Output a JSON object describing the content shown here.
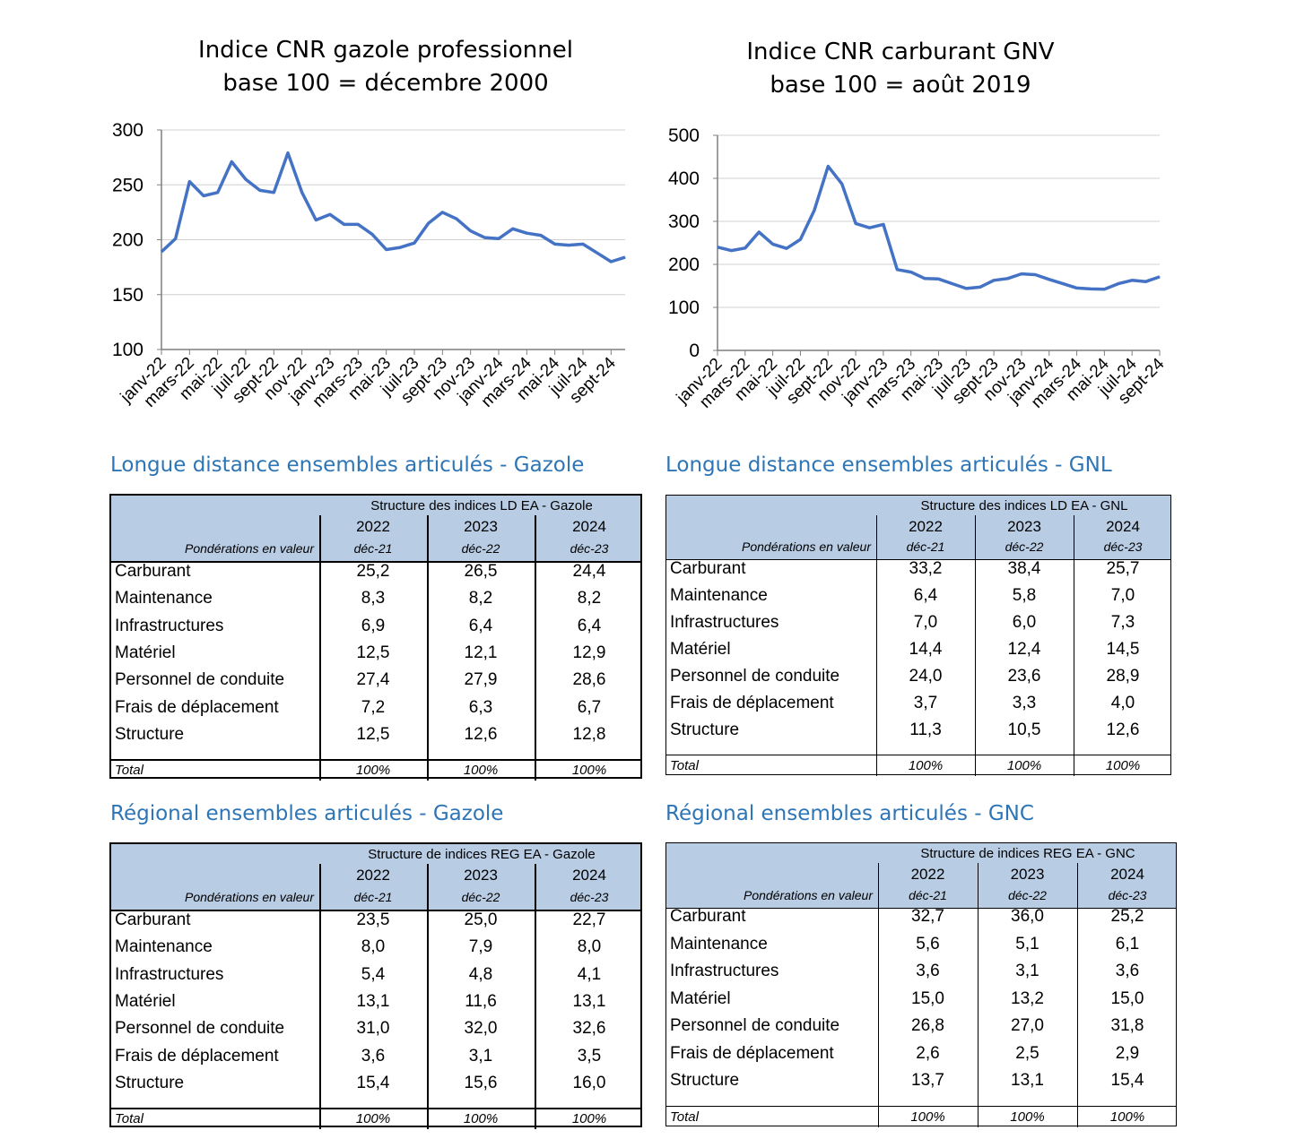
{
  "chart_data": [
    {
      "type": "line",
      "title": "Indice CNR gazole professionnel",
      "subtitle": "base 100 = décembre 2000",
      "ylim": [
        100,
        300
      ],
      "yticks": [
        100,
        150,
        200,
        250,
        300
      ],
      "grid": true,
      "color": "#4472c4",
      "tick_labels": [
        "janv-22",
        "mars-22",
        "mai-22",
        "juil-22",
        "sept-22",
        "nov-22",
        "janv-23",
        "mars-23",
        "mai-23",
        "juil-23",
        "sept-23",
        "nov-23",
        "janv-24",
        "mars-24",
        "mai-24",
        "juil-24",
        "sept-24"
      ],
      "x": [
        "janv-22",
        "févr-22",
        "mars-22",
        "avr-22",
        "mai-22",
        "juin-22",
        "juil-22",
        "août-22",
        "sept-22",
        "oct-22",
        "nov-22",
        "déc-22",
        "janv-23",
        "févr-23",
        "mars-23",
        "avr-23",
        "mai-23",
        "juin-23",
        "juil-23",
        "août-23",
        "sept-23",
        "oct-23",
        "nov-23",
        "déc-23",
        "janv-24",
        "févr-24",
        "mars-24",
        "avr-24",
        "mai-24",
        "juin-24",
        "juil-24",
        "août-24",
        "sept-24",
        "oct-24"
      ],
      "values": [
        189,
        201,
        253,
        240,
        243,
        271,
        255,
        245,
        243,
        279,
        243,
        218,
        223,
        214,
        214,
        205,
        191,
        193,
        197,
        215,
        225,
        219,
        208,
        202,
        201,
        210,
        206,
        204,
        196,
        195,
        196,
        188,
        180,
        184
      ]
    },
    {
      "type": "line",
      "title": "Indice CNR carburant GNV",
      "subtitle": "base 100 = août 2019",
      "ylim": [
        0,
        500
      ],
      "yticks": [
        0,
        100,
        200,
        300,
        400,
        500
      ],
      "grid": true,
      "color": "#4472c4",
      "tick_labels": [
        "janv-22",
        "mars-22",
        "mai-22",
        "juil-22",
        "sept-22",
        "nov-22",
        "janv-23",
        "mars-23",
        "mai-23",
        "juil-23",
        "sept-23",
        "nov-23",
        "janv-24",
        "mars-24",
        "mai-24",
        "juil-24",
        "sept-24"
      ],
      "x": [
        "janv-22",
        "févr-22",
        "mars-22",
        "avr-22",
        "mai-22",
        "juin-22",
        "juil-22",
        "août-22",
        "sept-22",
        "oct-22",
        "nov-22",
        "déc-22",
        "janv-23",
        "févr-23",
        "mars-23",
        "avr-23",
        "mai-23",
        "juin-23",
        "juil-23",
        "août-23",
        "sept-23",
        "oct-23",
        "nov-23",
        "déc-23",
        "janv-24",
        "févr-24",
        "mars-24",
        "avr-24",
        "mai-24",
        "juin-24",
        "juil-24",
        "août-24",
        "sept-24"
      ],
      "values": [
        240,
        232,
        238,
        275,
        247,
        237,
        258,
        325,
        428,
        387,
        295,
        285,
        293,
        188,
        182,
        167,
        166,
        155,
        144,
        147,
        163,
        167,
        178,
        176,
        165,
        155,
        145,
        143,
        142,
        155,
        163,
        160,
        171
      ]
    }
  ],
  "tables": [
    {
      "section_title": "Longue distance ensembles articulés - Gazole",
      "header": "Structure des indices LD EA - Gazole",
      "pond_label": "Pondérations en valeur",
      "years": [
        "2022",
        "2023",
        "2024"
      ],
      "subs": [
        "déc-21",
        "déc-22",
        "déc-23"
      ],
      "rows": [
        {
          "label": "Carburant",
          "values": [
            "25,2",
            "26,5",
            "24,4"
          ]
        },
        {
          "label": "Maintenance",
          "values": [
            "8,3",
            "8,2",
            "8,2"
          ]
        },
        {
          "label": "Infrastructures",
          "values": [
            "6,9",
            "6,4",
            "6,4"
          ]
        },
        {
          "label": "Matériel",
          "values": [
            "12,5",
            "12,1",
            "12,9"
          ]
        },
        {
          "label": "Personnel de conduite",
          "values": [
            "27,4",
            "27,9",
            "28,6"
          ]
        },
        {
          "label": "Frais de déplacement",
          "values": [
            "7,2",
            "6,3",
            "6,7"
          ]
        },
        {
          "label": "Structure",
          "values": [
            "12,5",
            "12,6",
            "12,8"
          ]
        }
      ],
      "total": {
        "label": "Total",
        "values": [
          "100%",
          "100%",
          "100%"
        ]
      }
    },
    {
      "section_title": "Longue distance ensembles articulés - GNL",
      "header": "Structure des indices LD EA - GNL",
      "pond_label": "Pondérations en valeur",
      "years": [
        "2022",
        "2023",
        "2024"
      ],
      "subs": [
        "déc-21",
        "déc-22",
        "déc-23"
      ],
      "rows": [
        {
          "label": "Carburant",
          "values": [
            "33,2",
            "38,4",
            "25,7"
          ]
        },
        {
          "label": "Maintenance",
          "values": [
            "6,4",
            "5,8",
            "7,0"
          ]
        },
        {
          "label": "Infrastructures",
          "values": [
            "7,0",
            "6,0",
            "7,3"
          ]
        },
        {
          "label": "Matériel",
          "values": [
            "14,4",
            "12,4",
            "14,5"
          ]
        },
        {
          "label": "Personnel de conduite",
          "values": [
            "24,0",
            "23,6",
            "28,9"
          ]
        },
        {
          "label": "Frais de déplacement",
          "values": [
            "3,7",
            "3,3",
            "4,0"
          ]
        },
        {
          "label": "Structure",
          "values": [
            "11,3",
            "10,5",
            "12,6"
          ]
        }
      ],
      "total": {
        "label": "Total",
        "values": [
          "100%",
          "100%",
          "100%"
        ]
      }
    },
    {
      "section_title": "Régional ensembles articulés - Gazole",
      "header": "Structure de indices REG EA - Gazole",
      "pond_label": "Pondérations en valeur",
      "years": [
        "2022",
        "2023",
        "2024"
      ],
      "subs": [
        "déc-21",
        "déc-22",
        "déc-23"
      ],
      "rows": [
        {
          "label": "Carburant",
          "values": [
            "23,5",
            "25,0",
            "22,7"
          ]
        },
        {
          "label": "Maintenance",
          "values": [
            "8,0",
            "7,9",
            "8,0"
          ]
        },
        {
          "label": "Infrastructures",
          "values": [
            "5,4",
            "4,8",
            "4,1"
          ]
        },
        {
          "label": "Matériel",
          "values": [
            "13,1",
            "11,6",
            "13,1"
          ]
        },
        {
          "label": "Personnel de conduite",
          "values": [
            "31,0",
            "32,0",
            "32,6"
          ]
        },
        {
          "label": "Frais de déplacement",
          "values": [
            "3,6",
            "3,1",
            "3,5"
          ]
        },
        {
          "label": "Structure",
          "values": [
            "15,4",
            "15,6",
            "16,0"
          ]
        }
      ],
      "total": {
        "label": "Total",
        "values": [
          "100%",
          "100%",
          "100%"
        ]
      }
    },
    {
      "section_title": "Régional ensembles articulés - GNC",
      "header": "Structure de indices REG EA - GNC",
      "pond_label": "Pondérations en valeur",
      "years": [
        "2022",
        "2023",
        "2024"
      ],
      "subs": [
        "déc-21",
        "déc-22",
        "déc-23"
      ],
      "rows": [
        {
          "label": "Carburant",
          "values": [
            "32,7",
            "36,0",
            "25,2"
          ]
        },
        {
          "label": "Maintenance",
          "values": [
            "5,6",
            "5,1",
            "6,1"
          ]
        },
        {
          "label": "Infrastructures",
          "values": [
            "3,6",
            "3,1",
            "3,6"
          ]
        },
        {
          "label": "Matériel",
          "values": [
            "15,0",
            "13,2",
            "15,0"
          ]
        },
        {
          "label": "Personnel de conduite",
          "values": [
            "26,8",
            "27,0",
            "31,8"
          ]
        },
        {
          "label": "Frais de déplacement",
          "values": [
            "2,6",
            "2,5",
            "2,9"
          ]
        },
        {
          "label": "Structure",
          "values": [
            "13,7",
            "13,1",
            "15,4"
          ]
        }
      ],
      "total": {
        "label": "Total",
        "values": [
          "100%",
          "100%",
          "100%"
        ]
      }
    }
  ]
}
